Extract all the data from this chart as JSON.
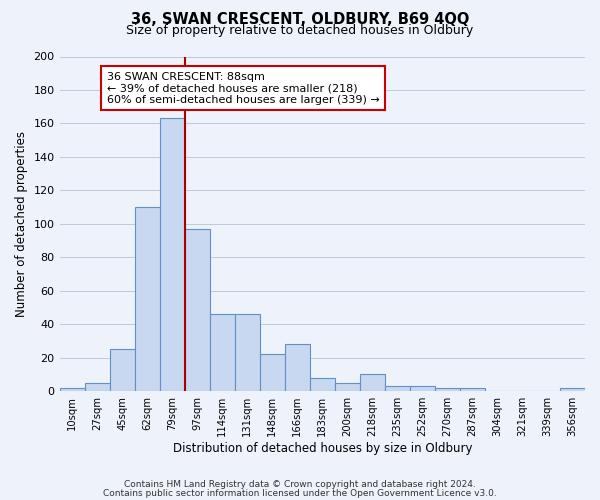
{
  "title": "36, SWAN CRESCENT, OLDBURY, B69 4QQ",
  "subtitle": "Size of property relative to detached houses in Oldbury",
  "xlabel": "Distribution of detached houses by size in Oldbury",
  "ylabel": "Number of detached properties",
  "bar_labels": [
    "10sqm",
    "27sqm",
    "45sqm",
    "62sqm",
    "79sqm",
    "97sqm",
    "114sqm",
    "131sqm",
    "148sqm",
    "166sqm",
    "183sqm",
    "200sqm",
    "218sqm",
    "235sqm",
    "252sqm",
    "270sqm",
    "287sqm",
    "304sqm",
    "321sqm",
    "339sqm",
    "356sqm"
  ],
  "bar_values": [
    2,
    5,
    25,
    110,
    163,
    97,
    46,
    46,
    22,
    28,
    8,
    5,
    10,
    3,
    3,
    2,
    2,
    0,
    0,
    0,
    2
  ],
  "bar_color": "#c8d8f0",
  "bar_edge_color": "#6090c8",
  "ylim": [
    0,
    200
  ],
  "yticks": [
    0,
    20,
    40,
    60,
    80,
    100,
    120,
    140,
    160,
    180,
    200
  ],
  "annotation_title": "36 SWAN CRESCENT: 88sqm",
  "annotation_line1": "← 39% of detached houses are smaller (218)",
  "annotation_line2": "60% of semi-detached houses are larger (339) →",
  "annotation_box_facecolor": "#ffffff",
  "annotation_box_edgecolor": "#cc0000",
  "property_line_color": "#aa0000",
  "background_color": "#eef2fb",
  "grid_color": "#c0c8dc",
  "footer1": "Contains HM Land Registry data © Crown copyright and database right 2024.",
  "footer2": "Contains public sector information licensed under the Open Government Licence v3.0."
}
